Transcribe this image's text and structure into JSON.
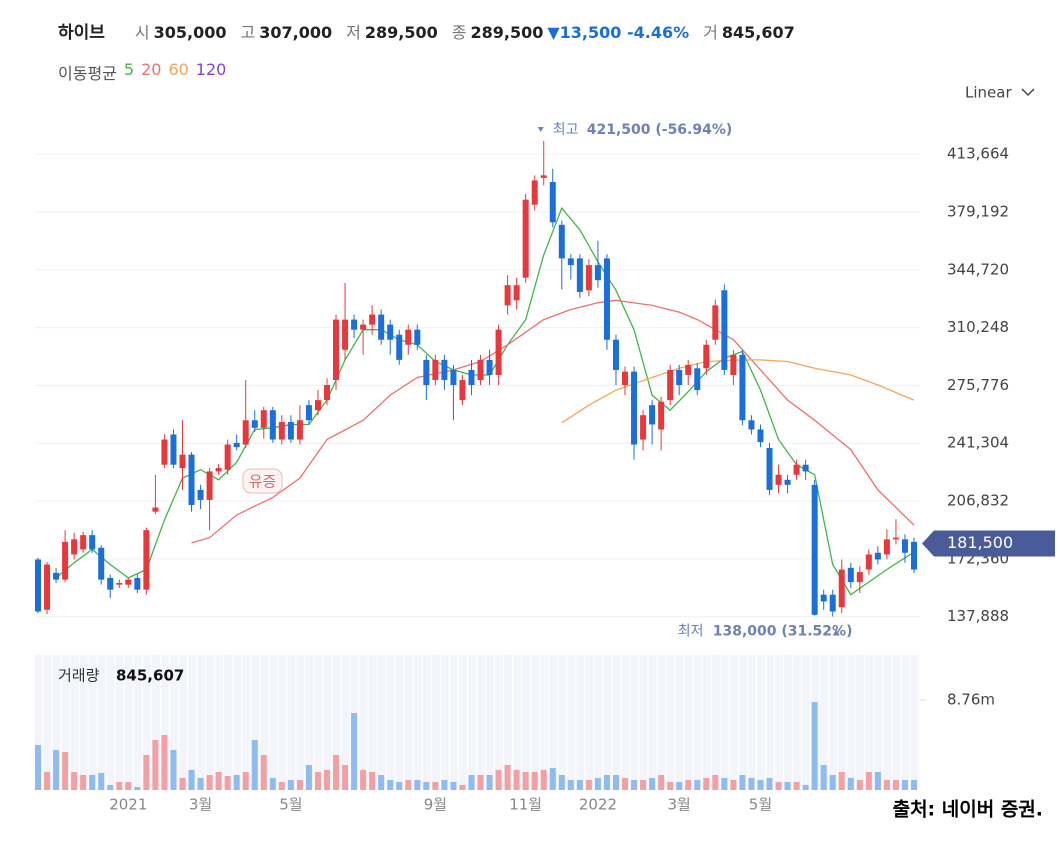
{
  "chart_data": {
    "type": "candlestick",
    "title": "하이브",
    "quote": [
      {
        "label": "시",
        "value": "305,000"
      },
      {
        "label": "고",
        "value": "307,000"
      },
      {
        "label": "저",
        "value": "289,500"
      },
      {
        "label": "종",
        "value": "289,500"
      }
    ],
    "change": "▼13,500 -4.46%",
    "change_color": "#1a6fdb",
    "volume_quote": {
      "label": "거",
      "value": "845,607"
    },
    "ma_label": "이동평균",
    "scale": "Linear",
    "categories": [
      null,
      null,
      null,
      null,
      null,
      null,
      null,
      null,
      null,
      null,
      "2021",
      null,
      null,
      null,
      null,
      null,
      null,
      null,
      "3월",
      null,
      null,
      null,
      null,
      null,
      null,
      null,
      null,
      null,
      "5월",
      null,
      null,
      null,
      null,
      null,
      null,
      null,
      null,
      null,
      null,
      null,
      null,
      null,
      null,
      null,
      "9월",
      null,
      null,
      null,
      null,
      null,
      null,
      null,
      null,
      null,
      "11월",
      null,
      null,
      null,
      null,
      null,
      null,
      null,
      "2022",
      null,
      null,
      null,
      null,
      null,
      null,
      null,
      null,
      "3월",
      null,
      null,
      null,
      null,
      null,
      null,
      null,
      null,
      "5월",
      null,
      null,
      null,
      null,
      null,
      null,
      null,
      null,
      null,
      null,
      null,
      null,
      null,
      null,
      null,
      null,
      null
    ],
    "open": [
      172000,
      142000,
      164000,
      160000,
      175000,
      178000,
      186500,
      179000,
      161000,
      157000,
      157000,
      161000,
      154000,
      200500,
      228500,
      246500,
      226500,
      234500,
      213500,
      207500,
      224500,
      225500,
      241500,
      240500,
      255000,
      250500,
      261000,
      243500,
      254000,
      243500,
      264000,
      261000,
      267000,
      279000,
      297000,
      315000,
      309000,
      312000,
      318000,
      312000,
      306000,
      300000,
      309000,
      291000,
      279000,
      291000,
      285000,
      267000,
      285000,
      279000,
      291000,
      282000,
      323500,
      326500,
      340000,
      383500,
      399500,
      397000,
      371500,
      351500,
      351500,
      332500,
      347500,
      351500,
      303000,
      276000,
      284000,
      243500,
      264000,
      249500,
      267000,
      285000,
      282000,
      286000,
      286000,
      303000,
      332500,
      282000,
      294000,
      255000,
      249500,
      238500,
      216500,
      219500,
      222500,
      228500,
      216500,
      151000,
      151000,
      143500,
      167000,
      158500,
      166000,
      176000,
      175000,
      184000,
      184000,
      182500
    ],
    "high": [
      173000,
      170500,
      167000,
      189500,
      188000,
      188500,
      189500,
      180500,
      163000,
      160000,
      161000,
      163000,
      191000,
      222500,
      246500,
      249500,
      255000,
      236000,
      216500,
      226500,
      229000,
      243500,
      246500,
      279000,
      261000,
      263000,
      263000,
      258000,
      258000,
      264000,
      267000,
      273000,
      280000,
      318000,
      337000,
      318000,
      315000,
      323500,
      321000,
      315000,
      309000,
      312000,
      312000,
      294000,
      294000,
      294000,
      288000,
      282000,
      291000,
      294000,
      297000,
      312000,
      341500,
      340000,
      390000,
      401000,
      421500,
      405000,
      374000,
      354000,
      354000,
      351000,
      362000,
      354000,
      306000,
      287000,
      287000,
      261000,
      267000,
      269000,
      288000,
      288000,
      291000,
      289000,
      303000,
      327000,
      336000,
      297000,
      297000,
      258000,
      252500,
      241500,
      228500,
      222500,
      231500,
      231500,
      219500,
      154000,
      154000,
      172000,
      170000,
      168000,
      178000,
      180000,
      190000,
      196000,
      187000,
      185000
    ],
    "low": [
      140000,
      139500,
      158000,
      158500,
      172000,
      176000,
      176000,
      157000,
      149000,
      155000,
      155000,
      152000,
      151000,
      199000,
      226500,
      226500,
      213500,
      200500,
      202000,
      189500,
      222500,
      222500,
      237000,
      238500,
      248000,
      244000,
      241500,
      240500,
      241500,
      240500,
      252500,
      258000,
      264000,
      273000,
      291000,
      304000,
      294000,
      306000,
      300000,
      294000,
      288000,
      294000,
      297000,
      267000,
      276000,
      273000,
      255000,
      264000,
      270000,
      276000,
      276000,
      276000,
      318000,
      321000,
      337000,
      380000,
      395000,
      370000,
      333000,
      339000,
      328000,
      329000,
      334000,
      297000,
      276000,
      270000,
      231500,
      237000,
      240500,
      237000,
      264000,
      270000,
      276000,
      270000,
      282000,
      300000,
      282000,
      276000,
      252000,
      246500,
      239000,
      210500,
      211500,
      211500,
      219500,
      219500,
      138500,
      142000,
      138000,
      140000,
      155000,
      152000,
      163000,
      169000,
      172000,
      181000,
      170000,
      164000
    ],
    "close": [
      141000,
      169000,
      160000,
      182500,
      184000,
      186500,
      178000,
      160000,
      154000,
      158000,
      160000,
      154000,
      189500,
      203000,
      243500,
      228500,
      234500,
      204500,
      207500,
      224500,
      226500,
      240500,
      239000,
      255000,
      250500,
      261000,
      243500,
      254000,
      243500,
      255000,
      255000,
      267000,
      276000,
      315000,
      315000,
      309000,
      312000,
      318000,
      303000,
      303000,
      291000,
      309000,
      300000,
      276000,
      291000,
      279000,
      276000,
      279000,
      276000,
      291000,
      282000,
      309000,
      335500,
      335500,
      386500,
      398000,
      401000,
      373000,
      351500,
      347500,
      331500,
      347500,
      338500,
      303000,
      285000,
      284000,
      240500,
      258000,
      252500,
      266000,
      285000,
      276000,
      288000,
      273000,
      300000,
      323500,
      285000,
      294000,
      255000,
      249500,
      242000,
      213500,
      222500,
      216500,
      228500,
      224500,
      139000,
      147000,
      141000,
      166000,
      158500,
      164500,
      175000,
      172000,
      184000,
      185000,
      176000,
      166000
    ],
    "up_color": "#e8383d",
    "down_color": "#1a6fdb",
    "moving_averages": [
      {
        "name": "5",
        "color": "#43b649",
        "x": [
          2,
          4,
          6,
          8,
          10,
          12,
          14,
          16,
          18,
          20,
          22,
          24,
          26,
          28,
          30,
          32,
          34,
          36,
          38,
          40,
          42,
          44,
          46,
          48,
          50,
          52,
          54,
          56,
          58,
          60,
          62,
          64,
          66,
          68,
          70,
          72,
          74,
          76,
          78,
          80,
          82,
          84,
          86,
          88,
          90,
          92,
          94,
          96,
          97
        ],
        "values": [
          161000,
          170000,
          178000,
          169000,
          161000,
          166000,
          195500,
          220500,
          225500,
          219500,
          230000,
          249500,
          250500,
          252500,
          252500,
          267000,
          291000,
          309000,
          309000,
          303000,
          300000,
          290000,
          285000,
          282000,
          282000,
          300000,
          315000,
          353500,
          381500,
          368500,
          349500,
          332500,
          309000,
          270000,
          261000,
          272000,
          284000,
          292000,
          296000,
          273000,
          243500,
          228500,
          222500,
          169000,
          151000,
          158500,
          166000,
          173000,
          176500
        ]
      },
      {
        "name": "20",
        "color": "#f07070",
        "x": [
          17,
          19,
          22,
          26,
          29,
          32,
          36,
          39,
          42,
          46,
          49,
          52,
          56,
          59,
          62,
          64,
          68,
          71,
          73,
          77,
          80,
          83,
          86,
          90,
          93,
          97
        ],
        "values": [
          182000,
          185000,
          198500,
          209000,
          220500,
          243500,
          255000,
          270000,
          280500,
          285000,
          290000,
          300000,
          315000,
          321000,
          325000,
          326500,
          323500,
          319500,
          315000,
          303000,
          285000,
          267000,
          255000,
          237500,
          213500,
          192500
        ]
      },
      {
        "name": "60",
        "color": "#f5a55a",
        "x": [
          58,
          61,
          64,
          68,
          71,
          74,
          78,
          80,
          83,
          86,
          90,
          93,
          97
        ],
        "values": [
          253500,
          264000,
          273000,
          280500,
          286000,
          290000,
          291000,
          291000,
          290000,
          286000,
          282000,
          276000,
          267000
        ]
      },
      {
        "name": "120",
        "color": "#8a3fd1"
      }
    ],
    "ylim": [
      124000,
      434000
    ],
    "yticks": [
      {
        "value": 137888,
        "label": "137,888"
      },
      {
        "value": 172360,
        "label": "172,360"
      },
      {
        "value": 206832,
        "label": "206,832"
      },
      {
        "value": 241304,
        "label": "241,304"
      },
      {
        "value": 275776,
        "label": "275,776"
      },
      {
        "value": 310248,
        "label": "310,248"
      },
      {
        "value": 344720,
        "label": "344,720"
      },
      {
        "value": 379192,
        "label": "379,192"
      },
      {
        "value": 413664,
        "label": "413,664"
      }
    ],
    "grid": true,
    "high_annotation": {
      "label": "최고",
      "text": "421,500 (-56.94%)"
    },
    "low_annotation": {
      "label": "최저",
      "text": "138,000 (31.52%)"
    },
    "annotation_color": "#6f82b5",
    "last_price": {
      "value": 181500,
      "label": "181,500"
    },
    "event_label": "유증",
    "volume": {
      "label": "거래량",
      "last": "845,607",
      "values": [
        4380000,
        1750000,
        3890000,
        3700000,
        1750000,
        1460000,
        1460000,
        1660000,
        490000,
        780000,
        780000,
        290000,
        3410000,
        4870000,
        5350000,
        3890000,
        1170000,
        1950000,
        1170000,
        1460000,
        1750000,
        1360000,
        1460000,
        1750000,
        4870000,
        3410000,
        1170000,
        780000,
        970000,
        970000,
        2430000,
        1750000,
        1950000,
        3410000,
        2430000,
        7490000,
        1950000,
        1750000,
        1460000,
        970000,
        780000,
        970000,
        970000,
        780000,
        780000,
        970000,
        780000,
        490000,
        1460000,
        1460000,
        1460000,
        1950000,
        2430000,
        1950000,
        1750000,
        1750000,
        1950000,
        2140000,
        1460000,
        970000,
        970000,
        970000,
        1170000,
        1460000,
        1460000,
        1170000,
        970000,
        970000,
        1170000,
        1460000,
        780000,
        780000,
        970000,
        970000,
        1170000,
        1460000,
        1170000,
        970000,
        1460000,
        1170000,
        970000,
        1170000,
        780000,
        780000,
        780000,
        490000,
        8560000,
        2430000,
        1460000,
        1750000,
        1170000,
        970000,
        1750000,
        1750000,
        970000,
        970000,
        970000,
        970000
      ],
      "up_color": "#f2a0a3",
      "down_color": "#8dbbf2",
      "ylim": [
        0,
        13140000
      ],
      "yticks": [
        {
          "value": 8760000,
          "label": "8.76m"
        }
      ]
    },
    "source": "출처: 네이버 증권."
  }
}
